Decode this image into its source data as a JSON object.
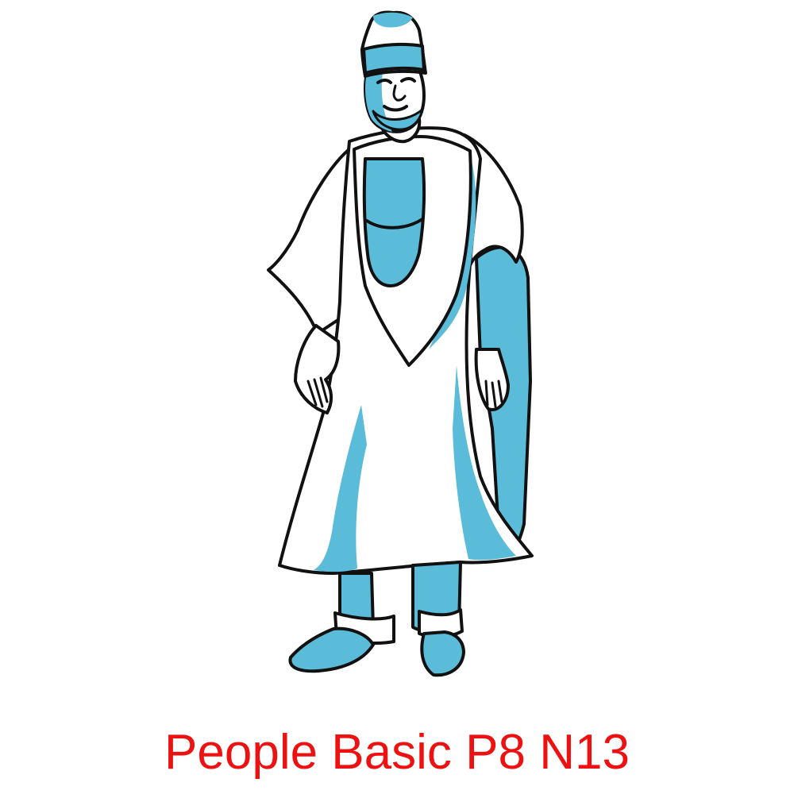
{
  "caption": "People Basic P8 N13",
  "colors": {
    "accent": "#5bbcd9",
    "outline": "#111111",
    "caption": "#ee1111",
    "background": "#ffffff"
  },
  "illustration": {
    "subject": "standing man in agbada robe with fila cap",
    "style": "line art with blue fills"
  }
}
